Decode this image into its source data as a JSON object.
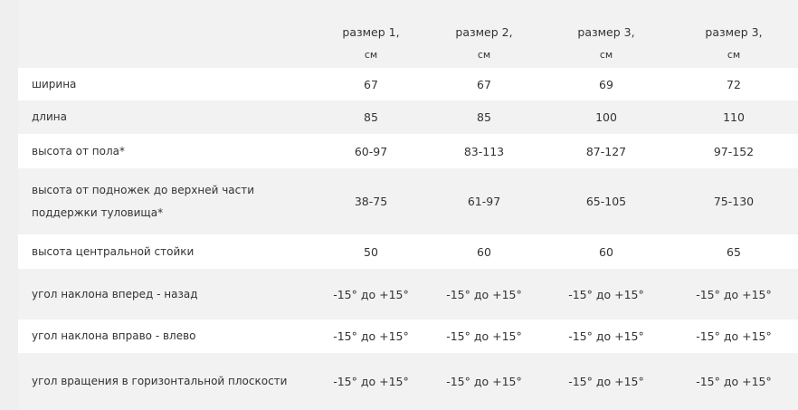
{
  "header": [
    {
      "line1": "размер 1,",
      "line2": "см"
    },
    {
      "line1": "размер 2,",
      "line2": "см"
    },
    {
      "line1": "размер 3,",
      "line2": "см"
    },
    {
      "line1": "размер 3,",
      "line2": "см"
    }
  ],
  "rows": [
    {
      "label": "ширина",
      "values": [
        "67",
        "67",
        "69",
        "72"
      ]
    },
    {
      "label": "длина",
      "values": [
        "85",
        "85",
        "100",
        "110"
      ]
    },
    {
      "label": "высота от пола*",
      "values": [
        "60-97",
        "83-113",
        "87-127",
        "97-152"
      ]
    },
    {
      "label": "высота от подножек до верхней части поддержки туловища*",
      "values": [
        "38-75",
        "61-97",
        "65-105",
        "75-130"
      ]
    },
    {
      "label": "высота центральной стойки",
      "values": [
        "50",
        "60",
        "60",
        "65"
      ]
    },
    {
      "label": "угол наклона вперед - назад",
      "values": [
        "-15° до +15°",
        "-15° до +15°",
        "-15° до +15°",
        "-15° до +15°"
      ]
    },
    {
      "label": "угол наклона вправо - влево",
      "values": [
        "-15° до +15°",
        "-15° до +15°",
        "-15° до +15°",
        "-15° до +15°"
      ]
    },
    {
      "label": "угол вращения в горизонтальной плоскости",
      "values": [
        "-15° до +15°",
        "-15° до +15°",
        "-15° до +15°",
        "-15° до +15°"
      ]
    }
  ]
}
